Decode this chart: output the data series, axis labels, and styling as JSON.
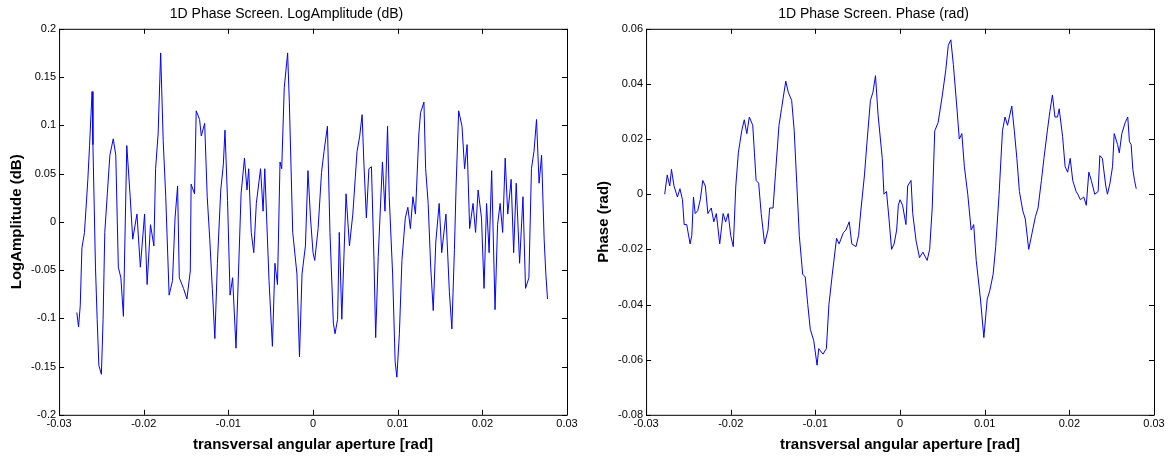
{
  "chart_data": [
    {
      "type": "line",
      "title": "1D Phase Screen. LogAmplitude (dB)",
      "xlabel": "transversal angular aperture [rad]",
      "ylabel": "LogAmplitude (dB)",
      "xlim": [
        -0.03,
        0.03
      ],
      "ylim": [
        -0.2,
        0.2
      ],
      "xticks": [
        -0.03,
        -0.02,
        -0.01,
        0,
        0.01,
        0.02,
        0.03
      ],
      "yticks": [
        -0.2,
        -0.15,
        -0.1,
        -0.05,
        0,
        0.05,
        0.1,
        0.15,
        0.2
      ],
      "grid": false,
      "series": [
        {
          "color": "#0000ff",
          "x": [
            -0.0279,
            -0.0277,
            -0.0275,
            -0.0273,
            -0.027,
            -0.0266,
            -0.0264,
            -0.0261,
            -0.026,
            -0.0257,
            -0.0255,
            -0.0253,
            -0.025,
            -0.0248,
            -0.0246,
            -0.0243,
            -0.024,
            -0.0236,
            -0.0233,
            -0.023,
            -0.0227,
            -0.0224,
            -0.022,
            -0.0216,
            -0.0213,
            -0.0208,
            -0.0204,
            -0.0199,
            -0.0196,
            -0.0192,
            -0.0188,
            -0.0186,
            -0.0183,
            -0.018,
            -0.0177,
            -0.0174,
            -0.017,
            -0.0166,
            -0.0163,
            -0.016,
            -0.0158,
            -0.0153,
            -0.0149,
            -0.0145,
            -0.0144,
            -0.014,
            -0.0138,
            -0.0134,
            -0.0132,
            -0.0128,
            -0.0125,
            -0.0122,
            -0.0119,
            -0.0116,
            -0.0113,
            -0.0109,
            -0.0106,
            -0.0104,
            -0.0101,
            -0.0098,
            -0.0095,
            -0.0091,
            -0.0088,
            -0.0085,
            -0.0081,
            -0.0078,
            -0.0076,
            -0.0073,
            -0.007,
            -0.0067,
            -0.0062,
            -0.0059,
            -0.0057,
            -0.0052,
            -0.0048,
            -0.0045,
            -0.0042,
            -0.0039,
            -0.0037,
            -0.0034,
            -0.003,
            -0.0028,
            -0.0024,
            -0.0019,
            -0.0016,
            -0.0013,
            -0.0009,
            -0.0006,
            -0.0003,
            0.0,
            0.0002,
            0.0006,
            0.001,
            0.0013,
            0.0017,
            0.002,
            0.0024,
            0.0026,
            0.0029,
            0.0031,
            0.0034,
            0.0039,
            0.0043,
            0.0047,
            0.0052,
            0.0055,
            0.0058,
            0.006,
            0.0063,
            0.0066,
            0.0069,
            0.0072,
            0.0074,
            0.0077,
            0.0082,
            0.0085,
            0.0088,
            0.009,
            0.0094,
            0.0097,
            0.0099,
            0.0102,
            0.0105,
            0.0109,
            0.0112,
            0.0115,
            0.0118,
            0.0121,
            0.0125,
            0.0127,
            0.0131,
            0.0133,
            0.0136,
            0.0139,
            0.0142,
            0.0145,
            0.0149,
            0.0152,
            0.0157,
            0.0161,
            0.0164,
            0.0167,
            0.0169,
            0.0172,
            0.0176,
            0.0179,
            0.0182,
            0.0185,
            0.0189,
            0.0192,
            0.0195,
            0.0199,
            0.0202,
            0.0205,
            0.0208,
            0.0211,
            0.0215,
            0.0218,
            0.0221,
            0.0224,
            0.0227,
            0.023,
            0.0234,
            0.0237,
            0.024,
            0.0244,
            0.0248,
            0.0251,
            0.0255,
            0.0258,
            0.0261,
            0.0264,
            0.0267,
            0.027,
            0.0273,
            0.0275,
            0.0277
          ],
          "values": [
            -0.094,
            -0.109,
            -0.087,
            -0.027,
            -0.011,
            0.044,
            0.079,
            0.135,
            0.08,
            -0.047,
            -0.101,
            -0.149,
            -0.158,
            -0.101,
            -0.011,
            0.029,
            0.069,
            0.086,
            0.069,
            -0.047,
            -0.058,
            -0.098,
            0.079,
            0.026,
            -0.018,
            0.008,
            -0.047,
            0.008,
            -0.065,
            -0.003,
            -0.025,
            0.055,
            0.091,
            0.175,
            0.084,
            0.026,
            -0.076,
            -0.061,
            0.004,
            0.037,
            -0.058,
            -0.069,
            -0.08,
            -0.051,
            0.039,
            0.029,
            0.115,
            0.106,
            0.089,
            0.102,
            0.026,
            -0.018,
            -0.069,
            -0.121,
            -0.043,
            0.033,
            0.059,
            0.095,
            0.022,
            -0.076,
            -0.058,
            -0.131,
            -0.051,
            0.029,
            0.066,
            0.033,
            0.055,
            -0.011,
            -0.032,
            0.019,
            0.055,
            0.011,
            0.055,
            -0.061,
            -0.129,
            -0.043,
            -0.065,
            0.062,
            0.055,
            0.139,
            0.175,
            0.124,
            -0.011,
            -0.054,
            -0.14,
            -0.054,
            -0.025,
            0.053,
            0.004,
            -0.032,
            -0.04,
            -0.007,
            0.051,
            0.073,
            0.099,
            -0.011,
            -0.105,
            -0.116,
            -0.101,
            -0.011,
            -0.101,
            0.029,
            -0.025,
            0.008,
            0.073,
            0.088,
            0.111,
            0.062,
            0.004,
            0.055,
            0.057,
            -0.04,
            -0.12,
            -0.036,
            0.062,
            0.011,
            0.099,
            0.026,
            -0.054,
            -0.145,
            -0.161,
            -0.116,
            -0.04,
            0.004,
            0.015,
            -0.007,
            0.026,
            0.008,
            0.091,
            0.113,
            0.124,
            0.055,
            0.019,
            -0.047,
            -0.092,
            -0.021,
            0.019,
            -0.032,
            0.008,
            -0.072,
            -0.111,
            -0.029,
            0.037,
            0.115,
            0.099,
            0.055,
            0.08,
            -0.007,
            0.019,
            -0.011,
            0.033,
            0.004,
            -0.069,
            0.019,
            -0.032,
            0.053,
            -0.091,
            -0.003,
            0.019,
            -0.011,
            0.066,
            0.008,
            0.044,
            -0.032,
            0.04,
            -0.043,
            0.026,
            -0.069,
            -0.058,
            0.055,
            0.073,
            0.106,
            0.04,
            0.069,
            -0.018,
            -0.054,
            -0.08
          ]
        }
      ]
    },
    {
      "type": "line",
      "title": "1D Phase Screen. Phase (rad)",
      "xlabel": "transversal angular aperture [rad]",
      "ylabel": "Phase (rad)",
      "xlim": [
        -0.03,
        0.03
      ],
      "ylim": [
        -0.08,
        0.06
      ],
      "xticks": [
        -0.03,
        -0.02,
        -0.01,
        0,
        0.01,
        0.02,
        0.03
      ],
      "yticks": [
        -0.08,
        -0.06,
        -0.04,
        -0.02,
        0,
        0.02,
        0.04,
        0.06
      ],
      "grid": false,
      "series": [
        {
          "color": "#0000ff",
          "x": [
            -0.0278,
            -0.0275,
            -0.0272,
            -0.027,
            -0.0267,
            -0.0263,
            -0.026,
            -0.0257,
            -0.0255,
            -0.0252,
            -0.0248,
            -0.0246,
            -0.0244,
            -0.0242,
            -0.0239,
            -0.0236,
            -0.0233,
            -0.023,
            -0.0227,
            -0.0223,
            -0.022,
            -0.0217,
            -0.0213,
            -0.0209,
            -0.0206,
            -0.0203,
            -0.02,
            -0.0197,
            -0.0194,
            -0.0191,
            -0.0187,
            -0.0184,
            -0.0181,
            -0.0178,
            -0.0174,
            -0.0172,
            -0.017,
            -0.0167,
            -0.0164,
            -0.016,
            -0.0156,
            -0.0154,
            -0.015,
            -0.0147,
            -0.0143,
            -0.014,
            -0.0135,
            -0.0132,
            -0.0128,
            -0.0125,
            -0.0122,
            -0.0119,
            -0.0115,
            -0.0112,
            -0.0109,
            -0.0106,
            -0.0102,
            -0.0098,
            -0.0096,
            -0.0091,
            -0.0087,
            -0.0084,
            -0.008,
            -0.0075,
            -0.0072,
            -0.0067,
            -0.0064,
            -0.006,
            -0.0057,
            -0.0052,
            -0.0049,
            -0.0046,
            -0.0042,
            -0.0039,
            -0.0035,
            -0.0032,
            -0.0029,
            -0.0026,
            -0.0021,
            -0.0019,
            -0.0016,
            -0.0013,
            -0.001,
            -0.0007,
            -0.0004,
            -0.0002,
            0.0,
            0.0003,
            0.0007,
            0.0009,
            0.0013,
            0.0015,
            0.0019,
            0.0023,
            0.0027,
            0.0032,
            0.0035,
            0.0038,
            0.0041,
            0.0045,
            0.0048,
            0.005,
            0.0054,
            0.0057,
            0.006,
            0.0063,
            0.0067,
            0.007,
            0.0073,
            0.0076,
            0.008,
            0.0084,
            0.0087,
            0.009,
            0.0095,
            0.0099,
            0.0103,
            0.0106,
            0.011,
            0.0113,
            0.0117,
            0.0121,
            0.0124,
            0.0127,
            0.0132,
            0.0135,
            0.0138,
            0.0141,
            0.0145,
            0.0148,
            0.0152,
            0.0156,
            0.016,
            0.0163,
            0.0167,
            0.017,
            0.0174,
            0.0177,
            0.018,
            0.0183,
            0.0186,
            0.0188,
            0.0192,
            0.0195,
            0.0198,
            0.0201,
            0.0204,
            0.0208,
            0.021,
            0.0213,
            0.0217,
            0.022,
            0.0223,
            0.0226,
            0.023,
            0.0234,
            0.0236,
            0.0239,
            0.0243,
            0.0245,
            0.0248,
            0.0251,
            0.0253,
            0.0257,
            0.0259,
            0.0262,
            0.0266,
            0.0269,
            0.0271,
            0.0273,
            0.0275,
            0.0277,
            0.0279
          ],
          "values": [
            0.0,
            0.007,
            0.003,
            0.009,
            0.003,
            -0.001,
            0.002,
            -0.002,
            -0.011,
            -0.011,
            -0.018,
            -0.015,
            -0.001,
            -0.007,
            -0.006,
            -0.002,
            0.005,
            0.003,
            -0.007,
            -0.005,
            -0.01,
            -0.007,
            -0.018,
            -0.007,
            -0.01,
            -0.007,
            -0.015,
            -0.019,
            0.003,
            0.015,
            0.023,
            0.027,
            0.022,
            0.028,
            0.025,
            0.015,
            0.005,
            0.004,
            -0.007,
            -0.018,
            -0.013,
            -0.005,
            -0.005,
            0.008,
            0.025,
            0.031,
            0.041,
            0.037,
            0.034,
            0.023,
            0.004,
            -0.015,
            -0.029,
            -0.03,
            -0.04,
            -0.049,
            -0.053,
            -0.062,
            -0.056,
            -0.058,
            -0.056,
            -0.04,
            -0.029,
            -0.016,
            -0.018,
            -0.014,
            -0.013,
            -0.01,
            -0.018,
            -0.019,
            -0.015,
            -0.005,
            0.007,
            0.019,
            0.034,
            0.037,
            0.043,
            0.029,
            0.013,
            0.0,
            0.001,
            -0.009,
            -0.02,
            -0.018,
            -0.013,
            -0.004,
            -0.002,
            -0.004,
            -0.011,
            0.003,
            0.005,
            -0.007,
            -0.017,
            -0.023,
            -0.021,
            -0.024,
            -0.02,
            -0.005,
            0.023,
            0.026,
            0.032,
            0.036,
            0.045,
            0.054,
            0.056,
            0.047,
            0.032,
            0.02,
            0.022,
            0.01,
            0.0,
            -0.013,
            -0.011,
            -0.024,
            -0.038,
            -0.052,
            -0.038,
            -0.035,
            -0.029,
            -0.019,
            0.0,
            0.023,
            0.028,
            0.025,
            0.032,
            0.023,
            0.013,
            0.001,
            -0.006,
            -0.009,
            -0.02,
            -0.014,
            -0.008,
            -0.005,
            0.005,
            0.013,
            0.023,
            0.03,
            0.036,
            0.028,
            0.028,
            0.031,
            0.021,
            0.01,
            0.008,
            0.013,
            0.005,
            0.001,
            0.0,
            -0.002,
            -0.001,
            -0.004,
            0.008,
            0.005,
            0.0,
            0.001,
            0.014,
            0.013,
            0.003,
            0.0,
            0.004,
            0.01,
            0.022,
            0.018,
            0.015,
            0.022,
            0.026,
            0.028,
            0.019,
            0.018,
            0.009,
            0.005,
            0.002
          ]
        }
      ]
    }
  ]
}
